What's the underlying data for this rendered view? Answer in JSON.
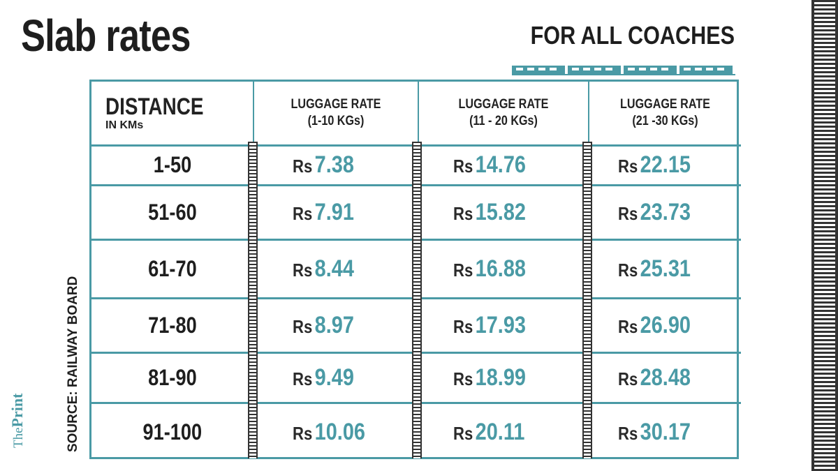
{
  "title": "Slab rates",
  "subtitle": "FOR ALL COACHES",
  "source": "SOURCE: RAILWAY BOARD",
  "logo": {
    "prefix": "The",
    "name": "Print"
  },
  "colors": {
    "accent": "#4a9aa5",
    "text": "#1e1e1e"
  },
  "header": {
    "distance": "DISTANCE",
    "distance_unit": "IN KMs",
    "rates": [
      {
        "line1": "LUGGAGE RATE",
        "line2": "(1-10 KGs)"
      },
      {
        "line1": "LUGGAGE RATE",
        "line2": "(11 - 20 KGs)"
      },
      {
        "line1": "LUGGAGE RATE",
        "line2": "(21 -30 KGs)"
      }
    ]
  },
  "currency": "Rs",
  "rows": [
    {
      "distance": "1-50",
      "rates": [
        "7.38",
        "14.76",
        "22.15"
      ]
    },
    {
      "distance": "51-60",
      "rates": [
        "7.91",
        "15.82",
        "23.73"
      ]
    },
    {
      "distance": "61-70",
      "rates": [
        "8.44",
        "16.88",
        "25.31"
      ]
    },
    {
      "distance": "71-80",
      "rates": [
        "8.97",
        "17.93",
        "26.90"
      ]
    },
    {
      "distance": "81-90",
      "rates": [
        "9.49",
        "18.99",
        "28.48"
      ]
    },
    {
      "distance": "91-100",
      "rates": [
        "10.06",
        "20.11",
        "30.17"
      ]
    }
  ]
}
